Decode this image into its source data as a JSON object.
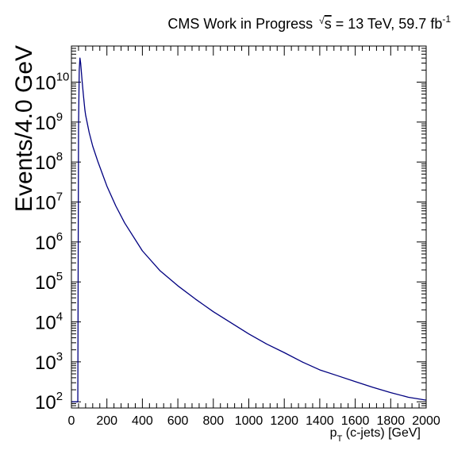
{
  "chart_data": {
    "type": "line",
    "title_prefix": "CMS Work in Progress",
    "sqrt_symbol": "√",
    "sqrt_var": "s",
    "title_suffix": " = 13 TeV, 59.7 fb",
    "title_sup": "-1",
    "xlabel_main": "p",
    "xlabel_sub": "T",
    "xlabel_rest": " (c-jets) [GeV]",
    "ylabel": "Events/4.0 GeV",
    "x_axis": {
      "min": 0,
      "max": 2000,
      "ticks": [
        0,
        200,
        400,
        600,
        800,
        1000,
        1200,
        1400,
        1600,
        1800,
        2000
      ],
      "tick_labels": [
        "0",
        "200",
        "400",
        "600",
        "800",
        "1000",
        "1200",
        "1400",
        "1600",
        "1800",
        "2000"
      ]
    },
    "y_axis": {
      "scale": "log",
      "min": 70,
      "max": 80000000000,
      "ticks": [
        {
          "value": 100,
          "base": "10",
          "exp": "2"
        },
        {
          "value": 1000,
          "base": "10",
          "exp": "3"
        },
        {
          "value": 10000,
          "base": "10",
          "exp": "4"
        },
        {
          "value": 100000,
          "base": "10",
          "exp": "5"
        },
        {
          "value": 1000000,
          "base": "10",
          "exp": "6"
        },
        {
          "value": 10000000,
          "base": "10",
          "exp": "7"
        },
        {
          "value": 100000000,
          "base": "10",
          "exp": "8"
        },
        {
          "value": 1000000000,
          "base": "10",
          "exp": "9"
        },
        {
          "value": 10000000000,
          "base": "10",
          "exp": "10"
        }
      ]
    },
    "series_color": "#000080",
    "series": [
      {
        "x": [
          0,
          20,
          24,
          28,
          32,
          36,
          40,
          44,
          48,
          52,
          56,
          60,
          64,
          68,
          72,
          76,
          80,
          100,
          120,
          150,
          200,
          250,
          300,
          400,
          500,
          600,
          700,
          800,
          900,
          1000,
          1100,
          1200,
          1300,
          1400,
          1500,
          1600,
          1700,
          1800,
          1900,
          2000
        ],
        "y": [
          100,
          100,
          100,
          100,
          100,
          100,
          700000000,
          20000000000,
          40000000000,
          30000000000,
          18000000000,
          11000000000,
          7000000000,
          4500000000,
          3000000000,
          2000000000,
          1500000000,
          550000000,
          250000000,
          100000000,
          25000000,
          8000000,
          3000000,
          600000,
          190000,
          80000,
          37000,
          18000,
          9500,
          5000,
          2800,
          1700,
          1000,
          630,
          450,
          320,
          230,
          170,
          130,
          110
        ]
      }
    ]
  }
}
